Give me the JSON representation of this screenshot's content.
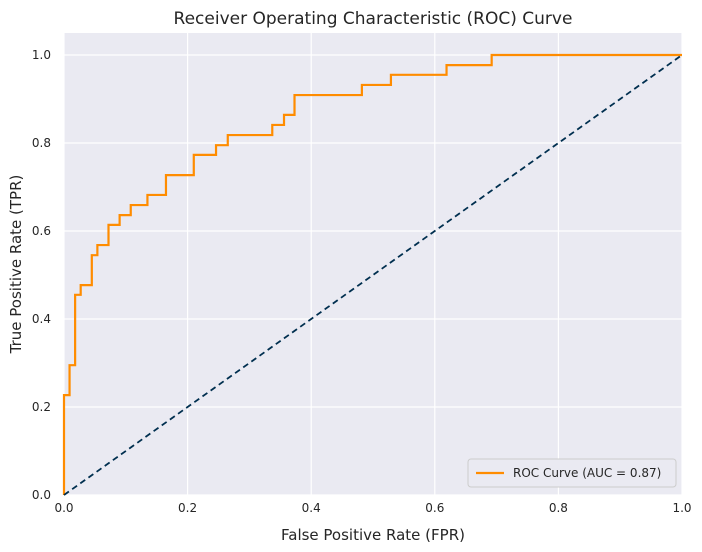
{
  "chart_data": {
    "type": "line",
    "title": "Receiver Operating Characteristic (ROC) Curve",
    "xlabel": "False Positive Rate (FPR)",
    "ylabel": "True Positive Rate (TPR)",
    "xlim": [
      0,
      1
    ],
    "ylim": [
      0,
      1.05
    ],
    "xticks": [
      "0.0",
      "0.2",
      "0.4",
      "0.6",
      "0.8",
      "1.0"
    ],
    "yticks": [
      "0.0",
      "0.2",
      "0.4",
      "0.6",
      "0.8",
      "1.0"
    ],
    "grid": true,
    "legend_position": "lower-right",
    "colors": {
      "background": "#eaeaf2",
      "grid": "#ffffff",
      "roc": "#ff8c00",
      "diagonal": "#002f4f",
      "text": "#262626"
    },
    "series": [
      {
        "name": "ROC Curve (AUC = 0.87)",
        "style": "solid",
        "fpr": [
          0.0,
          0.0,
          0.009,
          0.009,
          0.018,
          0.018,
          0.027,
          0.027,
          0.045,
          0.045,
          0.054,
          0.054,
          0.072,
          0.072,
          0.09,
          0.09,
          0.108,
          0.108,
          0.135,
          0.135,
          0.165,
          0.165,
          0.21,
          0.21,
          0.246,
          0.246,
          0.265,
          0.265,
          0.337,
          0.337,
          0.356,
          0.356,
          0.373,
          0.373,
          0.482,
          0.482,
          0.529,
          0.529,
          0.619,
          0.619,
          0.692,
          0.692,
          1.0
        ],
        "tpr": [
          0.0,
          0.227,
          0.227,
          0.295,
          0.295,
          0.455,
          0.455,
          0.477,
          0.477,
          0.545,
          0.545,
          0.568,
          0.568,
          0.614,
          0.614,
          0.636,
          0.636,
          0.659,
          0.659,
          0.682,
          0.682,
          0.727,
          0.727,
          0.773,
          0.773,
          0.795,
          0.795,
          0.818,
          0.818,
          0.841,
          0.841,
          0.864,
          0.864,
          0.909,
          0.909,
          0.932,
          0.932,
          0.955,
          0.955,
          0.977,
          0.977,
          1.0,
          1.0
        ]
      },
      {
        "name": "",
        "style": "dashed",
        "fpr": [
          0,
          1
        ],
        "tpr": [
          0,
          1
        ]
      }
    ]
  }
}
